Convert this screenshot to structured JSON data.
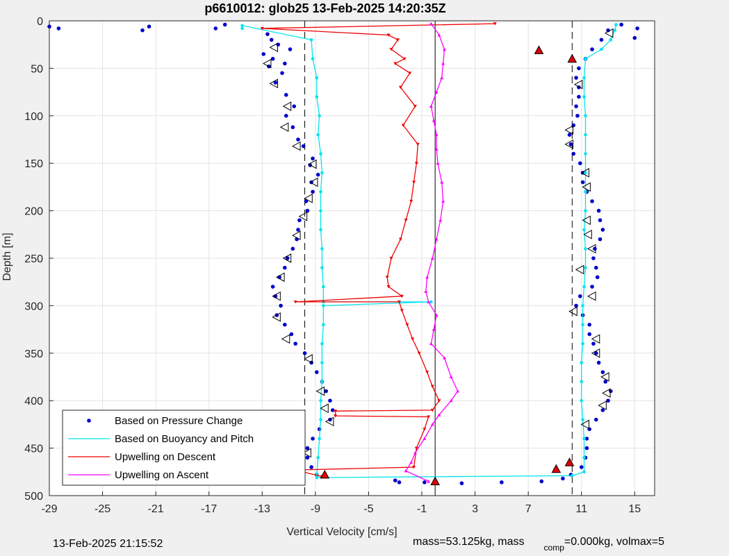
{
  "chart_data": {
    "type": "scatter",
    "title": "p6610012: glob25 13-Feb-2025 14:20:35Z",
    "xlabel": "Vertical Velocity [cm/s]",
    "ylabel": "Depth [m]",
    "xlim": [
      -29,
      16.5
    ],
    "ylim": [
      0,
      500
    ],
    "y_reversed": true,
    "grid": true,
    "legend_position": "bottom-left",
    "xticks": [
      -29,
      -25,
      -21,
      -17,
      -13,
      -9,
      -5,
      -1,
      3,
      7,
      11,
      15
    ],
    "yticks": [
      0,
      50,
      100,
      150,
      200,
      250,
      300,
      350,
      400,
      450,
      500
    ],
    "reference_lines": [
      {
        "x": -9.8,
        "style": "dashed"
      },
      {
        "x": 10.3,
        "style": "dashed"
      },
      {
        "x": 0,
        "style": "solid"
      }
    ],
    "series": [
      {
        "name": "Based on Pressure Change",
        "style": "dots",
        "color": "#0000cc",
        "points": [
          [
            -29,
            6
          ],
          [
            -28.3,
            8
          ],
          [
            -22,
            10
          ],
          [
            -21.5,
            6
          ],
          [
            -16.5,
            8
          ],
          [
            -15.8,
            4
          ],
          [
            -12.6,
            14
          ],
          [
            -12.3,
            20
          ],
          [
            -11.8,
            25
          ],
          [
            -12.9,
            35
          ],
          [
            -12.2,
            40
          ],
          [
            -11.3,
            45
          ],
          [
            -10.9,
            30
          ],
          [
            -12.5,
            48
          ],
          [
            -11.5,
            55
          ],
          [
            -12,
            65
          ],
          [
            -11.2,
            78
          ],
          [
            -10.6,
            90
          ],
          [
            -11.2,
            100
          ],
          [
            -10.7,
            112
          ],
          [
            -10.3,
            125
          ],
          [
            -9.9,
            132
          ],
          [
            -9.2,
            145
          ],
          [
            -9.4,
            152
          ],
          [
            -8.8,
            162
          ],
          [
            -9.3,
            170
          ],
          [
            -9.2,
            180
          ],
          [
            -9.7,
            190
          ],
          [
            -9.6,
            200
          ],
          [
            -10.2,
            210
          ],
          [
            -10.3,
            220
          ],
          [
            -10.4,
            230
          ],
          [
            -10.7,
            240
          ],
          [
            -11.1,
            250
          ],
          [
            -11.3,
            260
          ],
          [
            -11.7,
            270
          ],
          [
            -12.2,
            280
          ],
          [
            -12,
            290
          ],
          [
            -11.6,
            300
          ],
          [
            -11.9,
            310
          ],
          [
            -11.3,
            320
          ],
          [
            -10.8,
            330
          ],
          [
            -10.5,
            340
          ],
          [
            -9.8,
            350
          ],
          [
            -9.3,
            360
          ],
          [
            -8.9,
            370
          ],
          [
            -8.5,
            380
          ],
          [
            -8.2,
            390
          ],
          [
            -7.9,
            400
          ],
          [
            -7.7,
            410
          ],
          [
            -7.9,
            420
          ],
          [
            -8.7,
            430
          ],
          [
            -9.2,
            440
          ],
          [
            -9.6,
            450
          ],
          [
            -9.6,
            460
          ],
          [
            -9.3,
            470
          ],
          [
            -8.9,
            478
          ],
          [
            -3,
            484
          ],
          [
            -2.7,
            486
          ],
          [
            -0.8,
            486
          ],
          [
            2,
            487
          ],
          [
            5,
            486
          ],
          [
            8,
            485
          ],
          [
            9.6,
            482
          ],
          [
            10.2,
            478
          ],
          [
            11,
            470
          ],
          [
            11.3,
            460
          ],
          [
            11.4,
            450
          ],
          [
            11.4,
            440
          ],
          [
            11.6,
            430
          ],
          [
            12.1,
            420
          ],
          [
            12.6,
            410
          ],
          [
            13,
            400
          ],
          [
            13.2,
            390
          ],
          [
            12.8,
            380
          ],
          [
            12.6,
            370
          ],
          [
            12.3,
            360
          ],
          [
            12.1,
            350
          ],
          [
            11.9,
            340
          ],
          [
            11.6,
            330
          ],
          [
            11.6,
            320
          ],
          [
            11.1,
            310
          ],
          [
            10.6,
            300
          ],
          [
            10.9,
            290
          ],
          [
            11.8,
            280
          ],
          [
            12.2,
            270
          ],
          [
            12.1,
            260
          ],
          [
            11.9,
            250
          ],
          [
            12,
            240
          ],
          [
            12.4,
            230
          ],
          [
            12.6,
            220
          ],
          [
            12.4,
            210
          ],
          [
            12.3,
            200
          ],
          [
            11.8,
            190
          ],
          [
            11.4,
            180
          ],
          [
            11.1,
            170
          ],
          [
            11.1,
            160
          ],
          [
            10.9,
            150
          ],
          [
            10.4,
            140
          ],
          [
            10.2,
            130
          ],
          [
            10.1,
            120
          ],
          [
            10.4,
            110
          ],
          [
            10.7,
            100
          ],
          [
            10.6,
            90
          ],
          [
            10.8,
            80
          ],
          [
            10.8,
            70
          ],
          [
            10.6,
            60
          ],
          [
            10.8,
            50
          ],
          [
            11.3,
            40
          ],
          [
            11.8,
            30
          ],
          [
            12.5,
            20
          ],
          [
            13,
            10
          ],
          [
            14,
            4
          ],
          [
            15.2,
            8
          ],
          [
            15,
            18
          ]
        ]
      },
      {
        "name": "Based on Buoyancy and Pitch",
        "style": "line-dots",
        "color": "#00e5ee",
        "points": [
          [
            -14.5,
            8
          ],
          [
            -14.5,
            5
          ],
          [
            -9.3,
            20
          ],
          [
            -9.2,
            40
          ],
          [
            -8.9,
            60
          ],
          [
            -8.9,
            80
          ],
          [
            -8.7,
            100
          ],
          [
            -8.8,
            120
          ],
          [
            -8.6,
            140
          ],
          [
            -8.5,
            160
          ],
          [
            -8.6,
            180
          ],
          [
            -8.6,
            200
          ],
          [
            -8.6,
            220
          ],
          [
            -8.5,
            240
          ],
          [
            -8.5,
            260
          ],
          [
            -8.4,
            280
          ],
          [
            -8.4,
            296
          ],
          [
            -0.3,
            296
          ],
          [
            -8.4,
            300
          ],
          [
            -8.4,
            320
          ],
          [
            -8.5,
            340
          ],
          [
            -8.5,
            360
          ],
          [
            -8.5,
            380
          ],
          [
            -8.6,
            400
          ],
          [
            -8.6,
            420
          ],
          [
            -8.7,
            440
          ],
          [
            -8.8,
            460
          ],
          [
            -8.9,
            478
          ],
          [
            -8.9,
            481
          ],
          [
            10.3,
            479
          ],
          [
            11.2,
            475
          ],
          [
            11.2,
            460
          ],
          [
            11.2,
            440
          ],
          [
            11.1,
            420
          ],
          [
            11,
            400
          ],
          [
            11,
            380
          ],
          [
            11,
            360
          ],
          [
            11.1,
            340
          ],
          [
            11.1,
            320
          ],
          [
            11.1,
            300
          ],
          [
            11.2,
            280
          ],
          [
            11.3,
            260
          ],
          [
            11.3,
            240
          ],
          [
            11.2,
            220
          ],
          [
            11.3,
            200
          ],
          [
            11.3,
            180
          ],
          [
            11.3,
            160
          ],
          [
            11.3,
            140
          ],
          [
            11.3,
            120
          ],
          [
            11.3,
            100
          ],
          [
            11.2,
            80
          ],
          [
            11.2,
            60
          ],
          [
            11.3,
            40
          ],
          [
            12.5,
            30
          ],
          [
            13.2,
            20
          ],
          [
            13.5,
            10
          ],
          [
            13.6,
            4
          ]
        ]
      },
      {
        "name": "Upwelling on Descent",
        "style": "line-triangle-down",
        "color": "#ee0000",
        "points": [
          [
            4.5,
            3
          ],
          [
            -13,
            8
          ],
          [
            -3.5,
            15
          ],
          [
            -2.8,
            20
          ],
          [
            -3.3,
            30
          ],
          [
            -2.3,
            40
          ],
          [
            -3,
            45
          ],
          [
            -1.9,
            55
          ],
          [
            -2.6,
            70
          ],
          [
            -1.5,
            90
          ],
          [
            -2.4,
            110
          ],
          [
            -1.3,
            130
          ],
          [
            -1.4,
            150
          ],
          [
            -1.6,
            170
          ],
          [
            -1.8,
            190
          ],
          [
            -2.2,
            210
          ],
          [
            -2.6,
            230
          ],
          [
            -3.3,
            250
          ],
          [
            -3.6,
            270
          ],
          [
            -3.5,
            280
          ],
          [
            -2.5,
            290
          ],
          [
            -10.5,
            296
          ],
          [
            -2.7,
            296
          ],
          [
            -2.5,
            305
          ],
          [
            -2.1,
            320
          ],
          [
            -1.7,
            335
          ],
          [
            -1.2,
            350
          ],
          [
            -0.6,
            370
          ],
          [
            -0.2,
            385
          ],
          [
            0.3,
            400
          ],
          [
            -0.2,
            410
          ],
          [
            -7.5,
            411
          ],
          [
            -7.5,
            416
          ],
          [
            -0.5,
            417
          ],
          [
            -0.8,
            430
          ],
          [
            -1.4,
            450
          ],
          [
            -1.6,
            470
          ],
          [
            -10.5,
            473
          ],
          [
            -8.5,
            480
          ]
        ]
      },
      {
        "name": "Upwelling on Ascent",
        "style": "line-triangle-up",
        "color": "#ff00ff",
        "points": [
          [
            -0.5,
            485
          ],
          [
            -2.2,
            474
          ],
          [
            -1.8,
            465
          ],
          [
            -1.5,
            455
          ],
          [
            -0.8,
            440
          ],
          [
            -0.2,
            425
          ],
          [
            0.3,
            415
          ],
          [
            1.2,
            400
          ],
          [
            1.7,
            390
          ],
          [
            1.2,
            375
          ],
          [
            0.7,
            355
          ],
          [
            -0.3,
            340
          ],
          [
            -0.1,
            325
          ],
          [
            0.1,
            310
          ],
          [
            -0.5,
            296
          ],
          [
            -0.7,
            285
          ],
          [
            -0.6,
            270
          ],
          [
            -0.2,
            250
          ],
          [
            0.1,
            230
          ],
          [
            0.4,
            210
          ],
          [
            0.6,
            190
          ],
          [
            0.5,
            170
          ],
          [
            0.2,
            150
          ],
          [
            0.1,
            135
          ],
          [
            0.1,
            120
          ],
          [
            -0.1,
            105
          ],
          [
            -0.3,
            90
          ],
          [
            0.1,
            75
          ],
          [
            0.5,
            60
          ],
          [
            0.6,
            45
          ],
          [
            0.7,
            30
          ],
          [
            0.3,
            15
          ],
          [
            -0.3,
            3
          ]
        ]
      }
    ],
    "markers_triangle_open": [
      [
        13.1,
        13
      ],
      [
        -12.1,
        28
      ],
      [
        -12.6,
        45
      ],
      [
        -12.1,
        66
      ],
      [
        -11.1,
        90
      ],
      [
        -11.3,
        112
      ],
      [
        -10.4,
        132
      ],
      [
        -9.2,
        151
      ],
      [
        -9.1,
        170
      ],
      [
        -9.5,
        187
      ],
      [
        -9.9,
        206
      ],
      [
        -10.4,
        226
      ],
      [
        -11.1,
        250
      ],
      [
        -11.6,
        270
      ],
      [
        -11.9,
        290
      ],
      [
        -11.9,
        312
      ],
      [
        -11.2,
        335
      ],
      [
        -9.5,
        356
      ],
      [
        -8.6,
        390
      ],
      [
        -8.3,
        408
      ],
      [
        -7.9,
        422
      ],
      [
        -9.6,
        455
      ],
      [
        10.8,
        67
      ],
      [
        10.1,
        115
      ],
      [
        10.1,
        130
      ],
      [
        11.3,
        160
      ],
      [
        11.4,
        175
      ],
      [
        11.4,
        210
      ],
      [
        11.5,
        225
      ],
      [
        11.8,
        240
      ],
      [
        10.9,
        262
      ],
      [
        11.8,
        290
      ],
      [
        10.4,
        306
      ],
      [
        12.1,
        335
      ],
      [
        12.1,
        350
      ],
      [
        12.8,
        375
      ],
      [
        12.9,
        392
      ],
      [
        12.6,
        405
      ],
      [
        11.3,
        425
      ]
    ],
    "markers_triangle_filled": [
      [
        7.8,
        31
      ],
      [
        10.3,
        40
      ],
      [
        10.1,
        465
      ],
      [
        9.1,
        472
      ],
      [
        0,
        485
      ],
      [
        -8.3,
        478
      ]
    ],
    "legend": [
      {
        "label": "Based on Pressure Change",
        "color": "#0000cc",
        "style": "dot"
      },
      {
        "label": "Based on Buoyancy and Pitch",
        "color": "#00e5ee",
        "style": "line"
      },
      {
        "label": "Upwelling on Descent",
        "color": "#ee0000",
        "style": "line"
      },
      {
        "label": "Upwelling on Ascent",
        "color": "#ff00ff",
        "style": "line"
      }
    ]
  },
  "footer": {
    "timestamp": "13-Feb-2025 21:15:52",
    "mass_text": "mass=53.125kg, mass",
    "comp_sub": "comp",
    "comp_text": "=0.000kg, volmax=5"
  }
}
